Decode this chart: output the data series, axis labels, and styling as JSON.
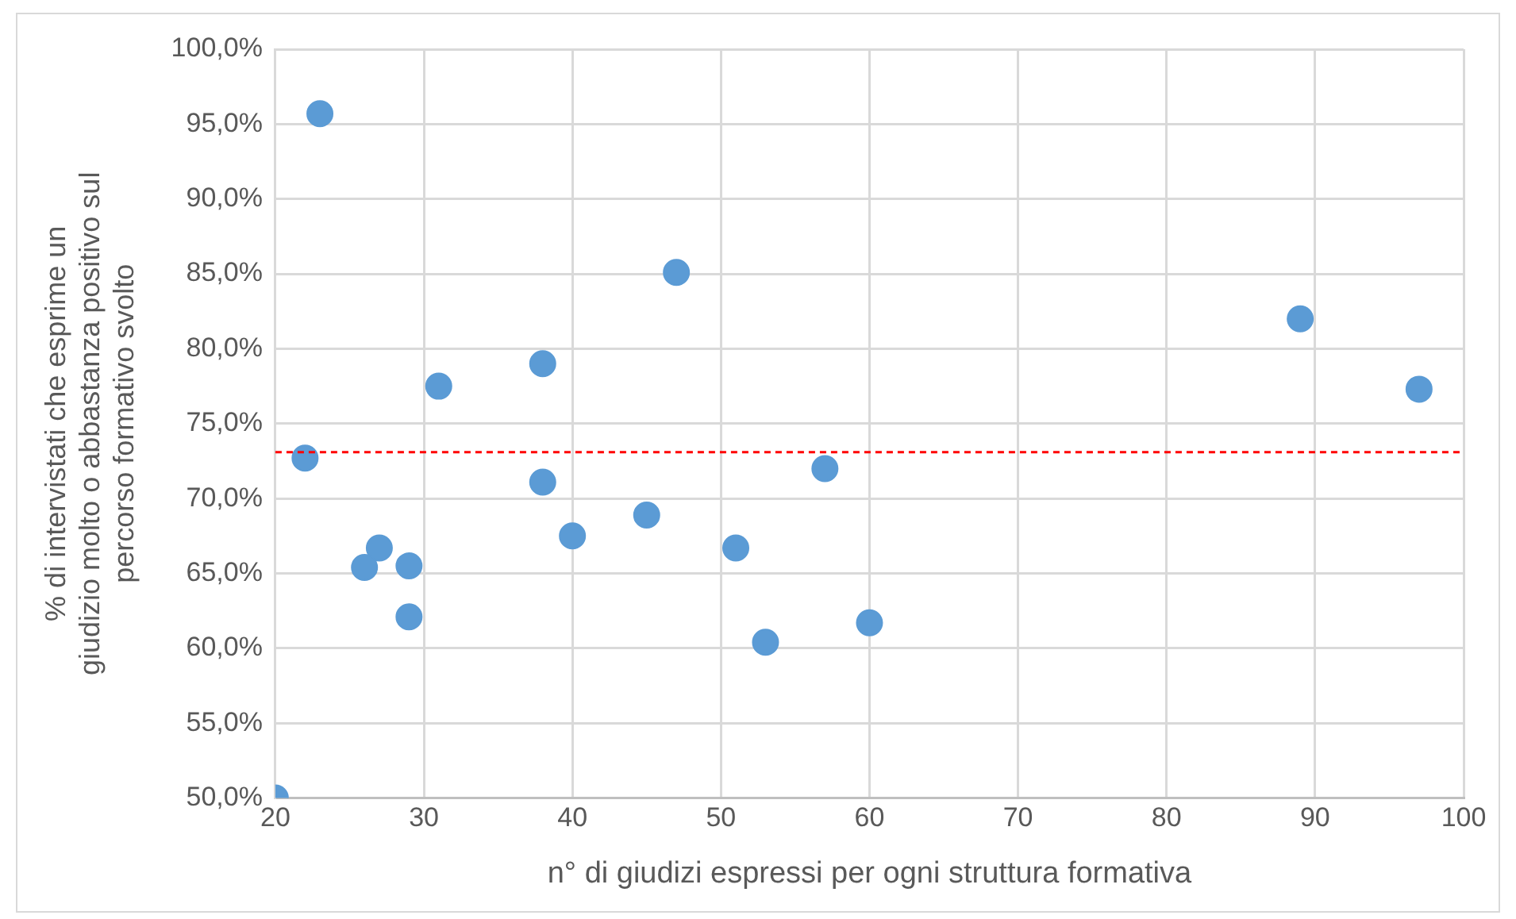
{
  "chart_data": {
    "type": "scatter",
    "xlabel": "n° di giudizi espressi per ogni struttura formativa",
    "ylabel": "% di intervistati che esprime un giudizio molto o abbastanza positivo sul percorso formativo svolto",
    "x": [
      20,
      23,
      22,
      27,
      26,
      29,
      29,
      31,
      38,
      38,
      40,
      45,
      47,
      51,
      53,
      57,
      60,
      89,
      97
    ],
    "series": [
      {
        "color": "#5b9bd5",
        "values": [
          50.0,
          95.7,
          72.7,
          66.7,
          65.4,
          65.5,
          62.1,
          77.5,
          79.0,
          71.1,
          67.5,
          68.9,
          85.1,
          66.7,
          60.4,
          72.0,
          61.7,
          82.0,
          77.3
        ]
      }
    ],
    "xlim": [
      20,
      100
    ],
    "xticks": [
      20,
      30,
      40,
      50,
      60,
      70,
      80,
      90,
      100
    ],
    "ylim": [
      50,
      100
    ],
    "yticks": [
      {
        "value": 50,
        "label": "50,0%"
      },
      {
        "value": 55,
        "label": "55,0%"
      },
      {
        "value": 60,
        "label": "60,0%"
      },
      {
        "value": 65,
        "label": "65,0%"
      },
      {
        "value": 70,
        "label": "70,0%"
      },
      {
        "value": 75,
        "label": "75,0%"
      },
      {
        "value": 80,
        "label": "80,0%"
      },
      {
        "value": 85,
        "label": "85,0%"
      },
      {
        "value": 90,
        "label": "90,0%"
      },
      {
        "value": 95,
        "label": "95,0%"
      },
      {
        "value": 100,
        "label": "100,0%"
      }
    ],
    "ref_lines": [
      {
        "axis": "y",
        "value": 73.1,
        "color": "#ff0000",
        "line_style": "dashed"
      }
    ],
    "grid": true,
    "legend": false,
    "marker": "circle"
  }
}
